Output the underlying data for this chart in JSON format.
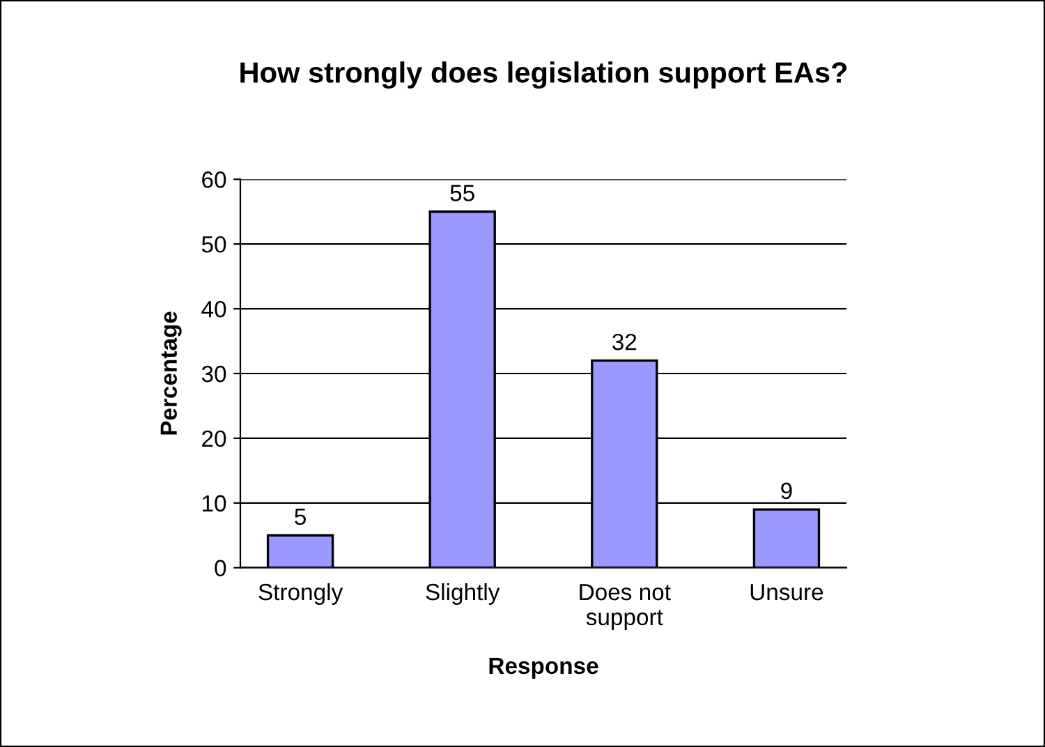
{
  "chart_data": {
    "type": "bar",
    "title": "How strongly does legislation support EAs?",
    "xlabel": "Response",
    "ylabel": "Percentage",
    "categories": [
      "Strongly",
      "Slightly",
      "Does not\nsupport",
      "Unsure"
    ],
    "values": [
      5,
      55,
      32,
      9
    ],
    "color": "#9999ff",
    "ylim": [
      0,
      60
    ],
    "yticks": [
      0,
      10,
      20,
      30,
      40,
      50,
      60
    ],
    "grid": "y",
    "data_labels": true
  }
}
